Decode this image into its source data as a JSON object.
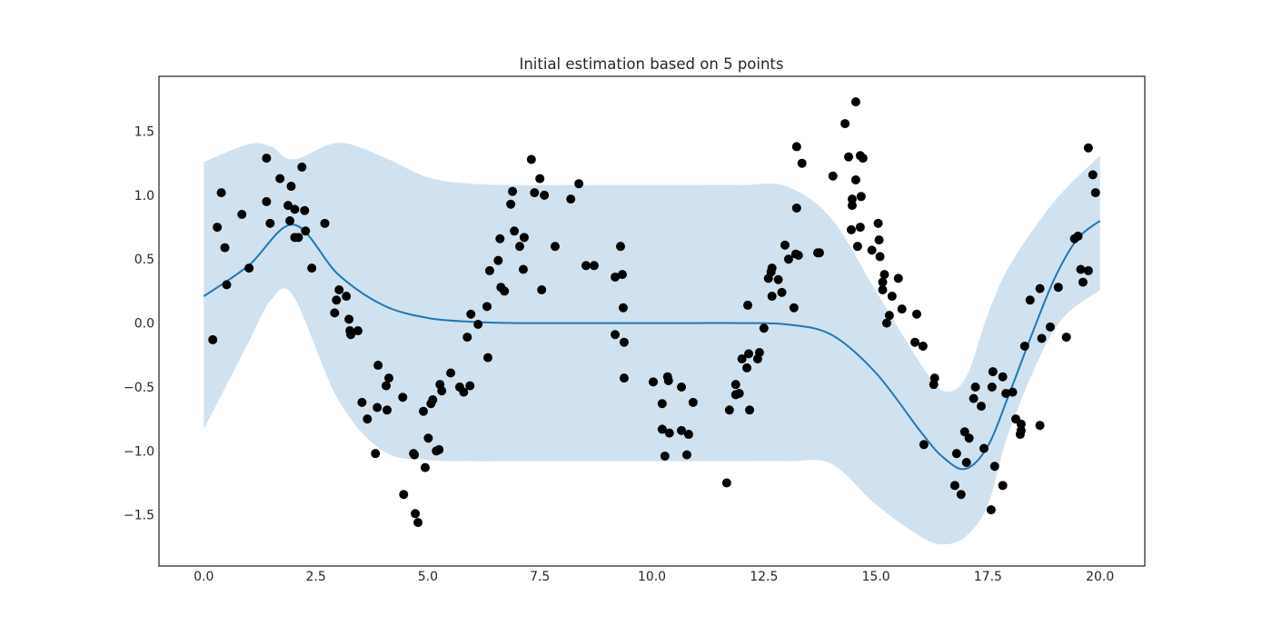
{
  "chart_data": {
    "type": "line",
    "title": "Initial estimation based on 5 points",
    "xlabel": "",
    "ylabel": "",
    "xlim": [
      -1,
      21
    ],
    "ylim": [
      -1.9,
      1.93
    ],
    "grid": false,
    "x_ticks": [
      "0.0",
      "2.5",
      "5.0",
      "7.5",
      "10.0",
      "12.5",
      "15.0",
      "17.5",
      "20.0"
    ],
    "y_ticks": [
      "1.5",
      "1.0",
      "0.5",
      "0.0",
      "−0.5",
      "−1.0",
      "−1.5"
    ],
    "colors": {
      "mean": "#1f77b4",
      "band": "#d0e2ef",
      "points": "#000000"
    },
    "mean": {
      "x": [
        0,
        1,
        2,
        3,
        4,
        5,
        6,
        7,
        8,
        9,
        10,
        11,
        12,
        13,
        14,
        15,
        16,
        16.5,
        17,
        17.5,
        18,
        18.5,
        19,
        19.5,
        20
      ],
      "y": [
        0.21,
        0.45,
        0.77,
        0.38,
        0.14,
        0.04,
        0.01,
        0,
        0,
        0,
        0,
        0,
        0,
        -0.01,
        -0.09,
        -0.39,
        -0.85,
        -1.05,
        -1.14,
        -0.96,
        -0.53,
        -0.07,
        0.36,
        0.66,
        0.8
      ]
    },
    "band": {
      "x": [
        0,
        1,
        1.5,
        2,
        3,
        4,
        5,
        6,
        7,
        8,
        9,
        10,
        11,
        12,
        13,
        14,
        15,
        16,
        16.5,
        17,
        17.5,
        18,
        19,
        20
      ],
      "upper": [
        1.26,
        1.4,
        1.38,
        1.28,
        1.41,
        1.3,
        1.14,
        1.09,
        1.08,
        1.08,
        1.08,
        1.08,
        1.08,
        1.08,
        1.07,
        0.82,
        0.25,
        -0.32,
        -0.53,
        -0.43,
        0.07,
        0.46,
        0.96,
        1.31
      ],
      "lower": [
        -0.83,
        -0.15,
        0.18,
        0.21,
        -0.6,
        -1.0,
        -1.07,
        -1.08,
        -1.08,
        -1.08,
        -1.08,
        -1.08,
        -1.08,
        -1.08,
        -1.08,
        -1.1,
        -1.42,
        -1.67,
        -1.73,
        -1.67,
        -1.42,
        -0.82,
        -0.04,
        0.26
      ]
    },
    "points": [
      [
        0.2,
        -0.13
      ],
      [
        0.3,
        0.75
      ],
      [
        0.39,
        1.02
      ],
      [
        0.47,
        0.59
      ],
      [
        0.51,
        0.3
      ],
      [
        0.85,
        0.85
      ],
      [
        1.01,
        0.43
      ],
      [
        1.4,
        1.29
      ],
      [
        1.4,
        0.95
      ],
      [
        1.48,
        0.78
      ],
      [
        1.7,
        1.13
      ],
      [
        1.88,
        0.92
      ],
      [
        1.92,
        0.8
      ],
      [
        1.95,
        1.07
      ],
      [
        2.03,
        0.89
      ],
      [
        2.03,
        0.67
      ],
      [
        2.11,
        0.67
      ],
      [
        2.19,
        1.22
      ],
      [
        2.25,
        0.88
      ],
      [
        2.27,
        0.72
      ],
      [
        2.41,
        0.43
      ],
      [
        2.7,
        0.78
      ],
      [
        2.92,
        0.08
      ],
      [
        2.96,
        0.18
      ],
      [
        3.02,
        0.26
      ],
      [
        3.18,
        0.21
      ],
      [
        3.24,
        0.03
      ],
      [
        3.26,
        -0.06
      ],
      [
        3.28,
        -0.09
      ],
      [
        3.44,
        -0.06
      ],
      [
        3.53,
        -0.62
      ],
      [
        3.65,
        -0.75
      ],
      [
        3.83,
        -1.02
      ],
      [
        3.87,
        -0.66
      ],
      [
        3.89,
        -0.33
      ],
      [
        4.07,
        -0.49
      ],
      [
        4.09,
        -0.68
      ],
      [
        4.13,
        -0.43
      ],
      [
        4.44,
        -0.58
      ],
      [
        4.46,
        -1.34
      ],
      [
        4.68,
        -1.02
      ],
      [
        4.7,
        -1.03
      ],
      [
        4.72,
        -1.49
      ],
      [
        4.78,
        -1.56
      ],
      [
        4.9,
        -0.69
      ],
      [
        4.94,
        -1.13
      ],
      [
        5.01,
        -0.9
      ],
      [
        5.07,
        -0.63
      ],
      [
        5.11,
        -0.6
      ],
      [
        5.19,
        -1.0
      ],
      [
        5.25,
        -0.99
      ],
      [
        5.27,
        -0.48
      ],
      [
        5.31,
        -0.53
      ],
      [
        5.51,
        -0.39
      ],
      [
        5.71,
        -0.5
      ],
      [
        5.8,
        -0.54
      ],
      [
        5.88,
        -0.11
      ],
      [
        5.94,
        -0.49
      ],
      [
        5.96,
        0.07
      ],
      [
        6.12,
        -0.01
      ],
      [
        6.32,
        0.13
      ],
      [
        6.34,
        -0.27
      ],
      [
        6.38,
        0.41
      ],
      [
        6.57,
        0.49
      ],
      [
        6.61,
        0.66
      ],
      [
        6.63,
        0.28
      ],
      [
        6.71,
        0.25
      ],
      [
        6.85,
        0.93
      ],
      [
        6.89,
        1.03
      ],
      [
        6.93,
        0.72
      ],
      [
        7.05,
        0.6
      ],
      [
        7.13,
        0.42
      ],
      [
        7.15,
        0.67
      ],
      [
        7.31,
        1.28
      ],
      [
        7.38,
        1.02
      ],
      [
        7.5,
        1.13
      ],
      [
        7.54,
        0.26
      ],
      [
        7.6,
        1.0
      ],
      [
        7.84,
        0.6
      ],
      [
        8.19,
        0.97
      ],
      [
        8.37,
        1.09
      ],
      [
        8.53,
        0.45
      ],
      [
        8.71,
        0.45
      ],
      [
        9.18,
        0.36
      ],
      [
        9.18,
        -0.09
      ],
      [
        9.3,
        0.6
      ],
      [
        9.34,
        0.38
      ],
      [
        9.36,
        0.12
      ],
      [
        9.38,
        -0.15
      ],
      [
        9.38,
        -0.43
      ],
      [
        10.03,
        -0.46
      ],
      [
        10.23,
        -0.63
      ],
      [
        10.23,
        -0.83
      ],
      [
        10.29,
        -1.04
      ],
      [
        10.35,
        -0.42
      ],
      [
        10.37,
        -0.45
      ],
      [
        10.39,
        -0.86
      ],
      [
        10.66,
        -0.5
      ],
      [
        10.66,
        -0.84
      ],
      [
        10.78,
        -1.03
      ],
      [
        10.82,
        -0.87
      ],
      [
        10.92,
        -0.62
      ],
      [
        11.67,
        -1.25
      ],
      [
        11.73,
        -0.68
      ],
      [
        11.87,
        -0.48
      ],
      [
        11.87,
        -0.56
      ],
      [
        11.95,
        -0.55
      ],
      [
        12.01,
        -0.28
      ],
      [
        12.12,
        -0.35
      ],
      [
        12.14,
        0.14
      ],
      [
        12.16,
        -0.24
      ],
      [
        12.18,
        -0.68
      ],
      [
        12.36,
        -0.28
      ],
      [
        12.4,
        -0.23
      ],
      [
        12.5,
        -0.04
      ],
      [
        12.6,
        0.35
      ],
      [
        12.66,
        0.4
      ],
      [
        12.68,
        0.21
      ],
      [
        12.68,
        0.43
      ],
      [
        12.82,
        0.34
      ],
      [
        12.9,
        0.24
      ],
      [
        12.97,
        0.61
      ],
      [
        13.05,
        0.5
      ],
      [
        13.17,
        0.12
      ],
      [
        13.21,
        0.54
      ],
      [
        13.23,
        1.38
      ],
      [
        13.23,
        0.9
      ],
      [
        13.27,
        0.53
      ],
      [
        13.35,
        1.25
      ],
      [
        13.7,
        0.55
      ],
      [
        13.74,
        0.55
      ],
      [
        14.04,
        1.15
      ],
      [
        14.31,
        1.56
      ],
      [
        14.39,
        1.3
      ],
      [
        14.45,
        0.73
      ],
      [
        14.47,
        0.97
      ],
      [
        14.47,
        0.92
      ],
      [
        14.55,
        1.73
      ],
      [
        14.55,
        1.12
      ],
      [
        14.59,
        0.6
      ],
      [
        14.65,
        1.31
      ],
      [
        14.65,
        0.75
      ],
      [
        14.67,
        0.99
      ],
      [
        14.71,
        1.29
      ],
      [
        14.91,
        0.57
      ],
      [
        15.05,
        0.78
      ],
      [
        15.07,
        0.65
      ],
      [
        15.09,
        0.52
      ],
      [
        15.15,
        0.32
      ],
      [
        15.15,
        0.26
      ],
      [
        15.19,
        0.38
      ],
      [
        15.24,
        0.0
      ],
      [
        15.3,
        0.06
      ],
      [
        15.36,
        0.21
      ],
      [
        15.5,
        0.35
      ],
      [
        15.58,
        0.11
      ],
      [
        15.87,
        -0.15
      ],
      [
        15.91,
        0.07
      ],
      [
        16.05,
        -0.18
      ],
      [
        16.07,
        -0.95
      ],
      [
        16.29,
        -0.48
      ],
      [
        16.31,
        -0.43
      ],
      [
        16.76,
        -1.27
      ],
      [
        16.8,
        -1.02
      ],
      [
        16.9,
        -1.34
      ],
      [
        16.98,
        -0.85
      ],
      [
        17.02,
        -1.09
      ],
      [
        17.08,
        -0.9
      ],
      [
        17.18,
        -0.59
      ],
      [
        17.22,
        -0.5
      ],
      [
        17.35,
        -0.65
      ],
      [
        17.41,
        -0.98
      ],
      [
        17.57,
        -1.46
      ],
      [
        17.59,
        -0.5
      ],
      [
        17.61,
        -0.38
      ],
      [
        17.65,
        -1.12
      ],
      [
        17.83,
        -0.42
      ],
      [
        17.83,
        -1.27
      ],
      [
        17.9,
        -0.55
      ],
      [
        18.05,
        -0.54
      ],
      [
        18.12,
        -0.75
      ],
      [
        18.22,
        -0.87
      ],
      [
        18.24,
        -0.79
      ],
      [
        18.24,
        -0.84
      ],
      [
        18.32,
        -0.18
      ],
      [
        18.44,
        0.18
      ],
      [
        18.66,
        0.27
      ],
      [
        18.66,
        -0.8
      ],
      [
        18.7,
        -0.12
      ],
      [
        18.89,
        -0.03
      ],
      [
        19.07,
        0.28
      ],
      [
        19.25,
        -0.11
      ],
      [
        19.43,
        0.66
      ],
      [
        19.51,
        0.68
      ],
      [
        19.57,
        0.42
      ],
      [
        19.62,
        0.32
      ],
      [
        19.74,
        1.37
      ],
      [
        19.74,
        0.41
      ],
      [
        19.84,
        1.16
      ],
      [
        19.9,
        1.02
      ]
    ]
  }
}
